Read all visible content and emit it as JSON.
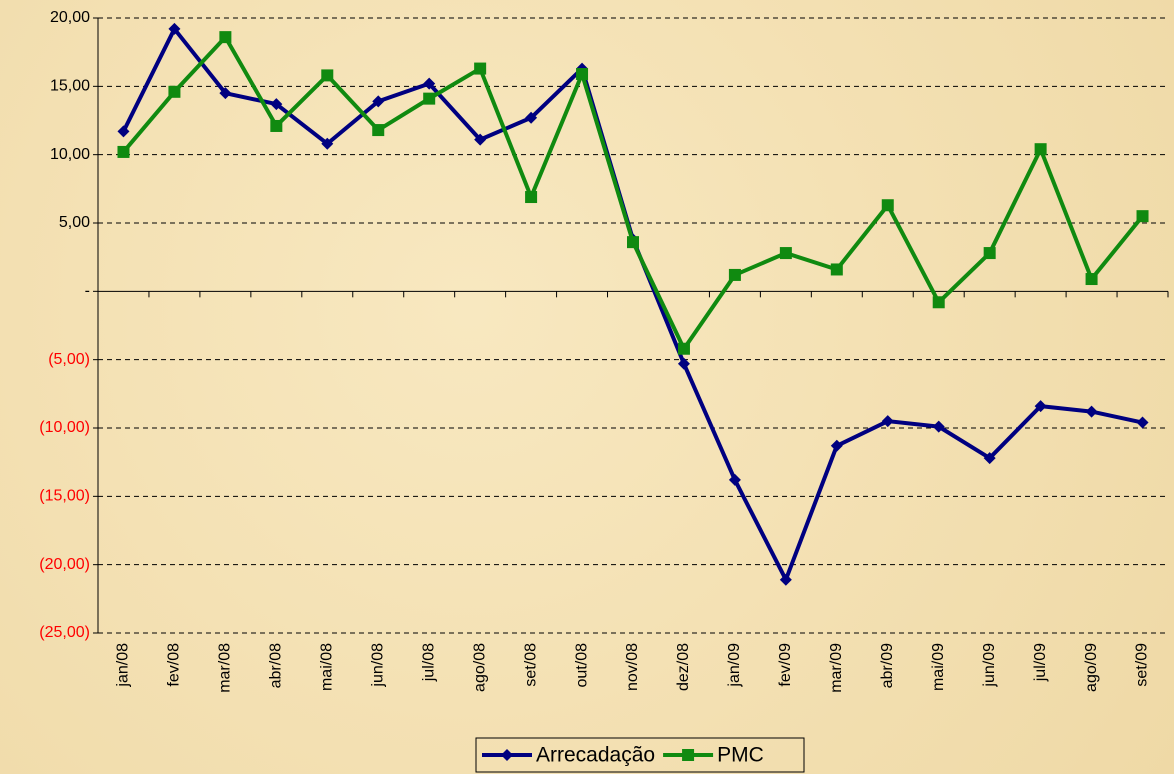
{
  "chart_data": {
    "type": "line",
    "categories": [
      "jan/08",
      "fev/08",
      "mar/08",
      "abr/08",
      "mai/08",
      "jun/08",
      "jul/08",
      "ago/08",
      "set/08",
      "out/08",
      "nov/08",
      "dez/08",
      "jan/09",
      "fev/09",
      "mar/09",
      "abr/09",
      "mai/09",
      "jun/09",
      "jul/09",
      "ago/09",
      "set/09"
    ],
    "series": [
      {
        "name": "Arrecadação",
        "color": "#000080",
        "marker": "diamond",
        "values": [
          11.7,
          19.2,
          14.5,
          13.7,
          10.8,
          13.9,
          15.2,
          11.1,
          12.7,
          16.3,
          3.8,
          -5.3,
          -13.8,
          -21.1,
          -11.3,
          -9.5,
          -9.9,
          -12.2,
          -8.4,
          -8.8,
          -9.6
        ]
      },
      {
        "name": "PMC",
        "color": "#108a10",
        "marker": "square",
        "values": [
          10.2,
          14.6,
          18.6,
          12.1,
          15.8,
          11.8,
          14.1,
          16.3,
          6.9,
          15.9,
          3.6,
          -4.2,
          1.2,
          2.8,
          1.6,
          6.3,
          -0.8,
          2.8,
          10.4,
          0.9,
          5.5
        ]
      }
    ],
    "ylim": [
      -25,
      20
    ],
    "yticks": [
      {
        "value": 20,
        "label": "20,00"
      },
      {
        "value": 15,
        "label": "15,00"
      },
      {
        "value": 10,
        "label": "10,00"
      },
      {
        "value": 5,
        "label": "5,00"
      },
      {
        "value": 0,
        "label": "-"
      },
      {
        "value": -5,
        "label": "(5,00)"
      },
      {
        "value": -10,
        "label": "(10,00)"
      },
      {
        "value": -15,
        "label": "(15,00)"
      },
      {
        "value": -20,
        "label": "(20,00)"
      },
      {
        "value": -25,
        "label": "(25,00)"
      }
    ],
    "grid": true,
    "legend": "bottom"
  }
}
